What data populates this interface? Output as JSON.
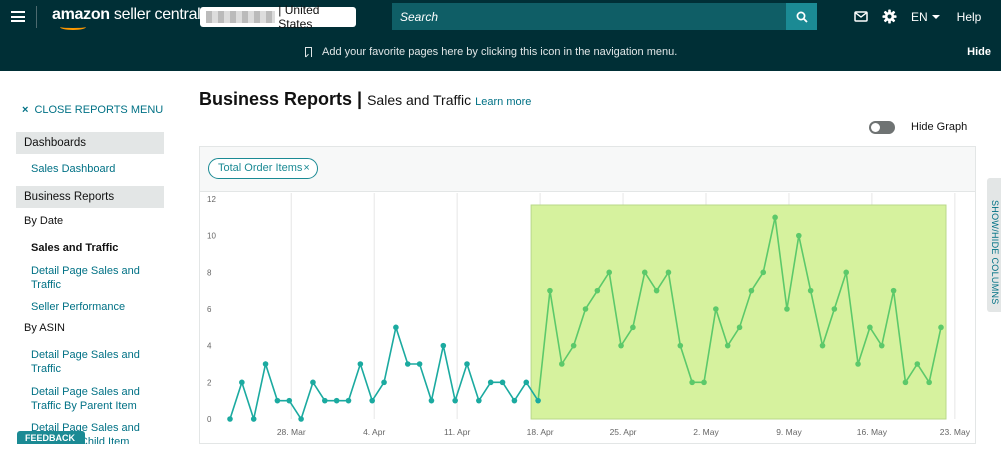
{
  "topbar": {
    "brand_bold": "amazon",
    "brand_light": " seller central",
    "marketplace": "| United States",
    "search_placeholder": "Search",
    "language": "EN",
    "help": "Help"
  },
  "favbar": {
    "message": "Add your favorite pages here by clicking this icon in the navigation menu.",
    "hide": "Hide"
  },
  "sidebar": {
    "close_menu": "CLOSE REPORTS MENU",
    "close_x": "×",
    "dashboards_heading": "Dashboards",
    "sales_dashboard": "Sales Dashboard",
    "business_reports_heading": "Business Reports",
    "by_date": "By Date",
    "sales_and_traffic": "Sales and Traffic",
    "detail_page_sales_traffic": "Detail Page Sales and Traffic",
    "seller_performance": "Seller Performance",
    "by_asin": "By ASIN",
    "asin_detail_page_sales_traffic": "Detail Page Sales and Traffic",
    "asin_by_parent": "Detail Page Sales and Traffic By Parent Item",
    "asin_by_child": "Detail Page Sales and Traffic By Child Item"
  },
  "feedback": "FEEDBACK ✕",
  "header": {
    "title": "Business Reports",
    "separator": "|",
    "subtitle": "Sales and Traffic",
    "learn_more": "Learn more"
  },
  "hide_graph": "Hide Graph",
  "metric_chip": {
    "label": "Total Order Items",
    "close": "×"
  },
  "side_tab": "SHOW/HIDE COLUMNS",
  "colors": {
    "topbar": "#002f36",
    "accent": "#007185",
    "series": "#1baaa0",
    "highlight_fill": "#d6f29e",
    "highlight_series": "#5cc96a"
  },
  "chart_data": {
    "type": "line",
    "title": "",
    "xlabel": "",
    "ylabel": "",
    "ylim": [
      0,
      12
    ],
    "yticks": [
      0,
      2,
      4,
      6,
      8,
      10,
      12
    ],
    "x_tick_labels": [
      "28. Mar",
      "4. Apr",
      "11. Apr",
      "18. Apr",
      "25. Apr",
      "2. May",
      "9. May",
      "16. May",
      "23. May"
    ],
    "x_tick_day_index": [
      5,
      12,
      19,
      26,
      33,
      40,
      47,
      54,
      61
    ],
    "highlighted_from_index": 26,
    "series": [
      {
        "values": [
          0,
          2,
          0,
          3,
          1,
          1,
          0,
          2,
          1,
          1,
          1,
          3,
          1,
          2,
          5,
          3,
          3,
          1,
          4,
          1,
          3,
          1,
          2,
          2,
          1,
          2,
          1,
          7,
          3,
          4,
          6,
          7,
          8,
          4,
          5,
          8,
          7,
          8,
          4,
          2,
          2,
          6,
          4,
          5,
          7,
          8,
          11,
          6,
          10,
          7,
          4,
          6,
          8,
          3,
          5,
          4,
          7,
          2,
          3,
          2,
          5
        ]
      }
    ]
  }
}
